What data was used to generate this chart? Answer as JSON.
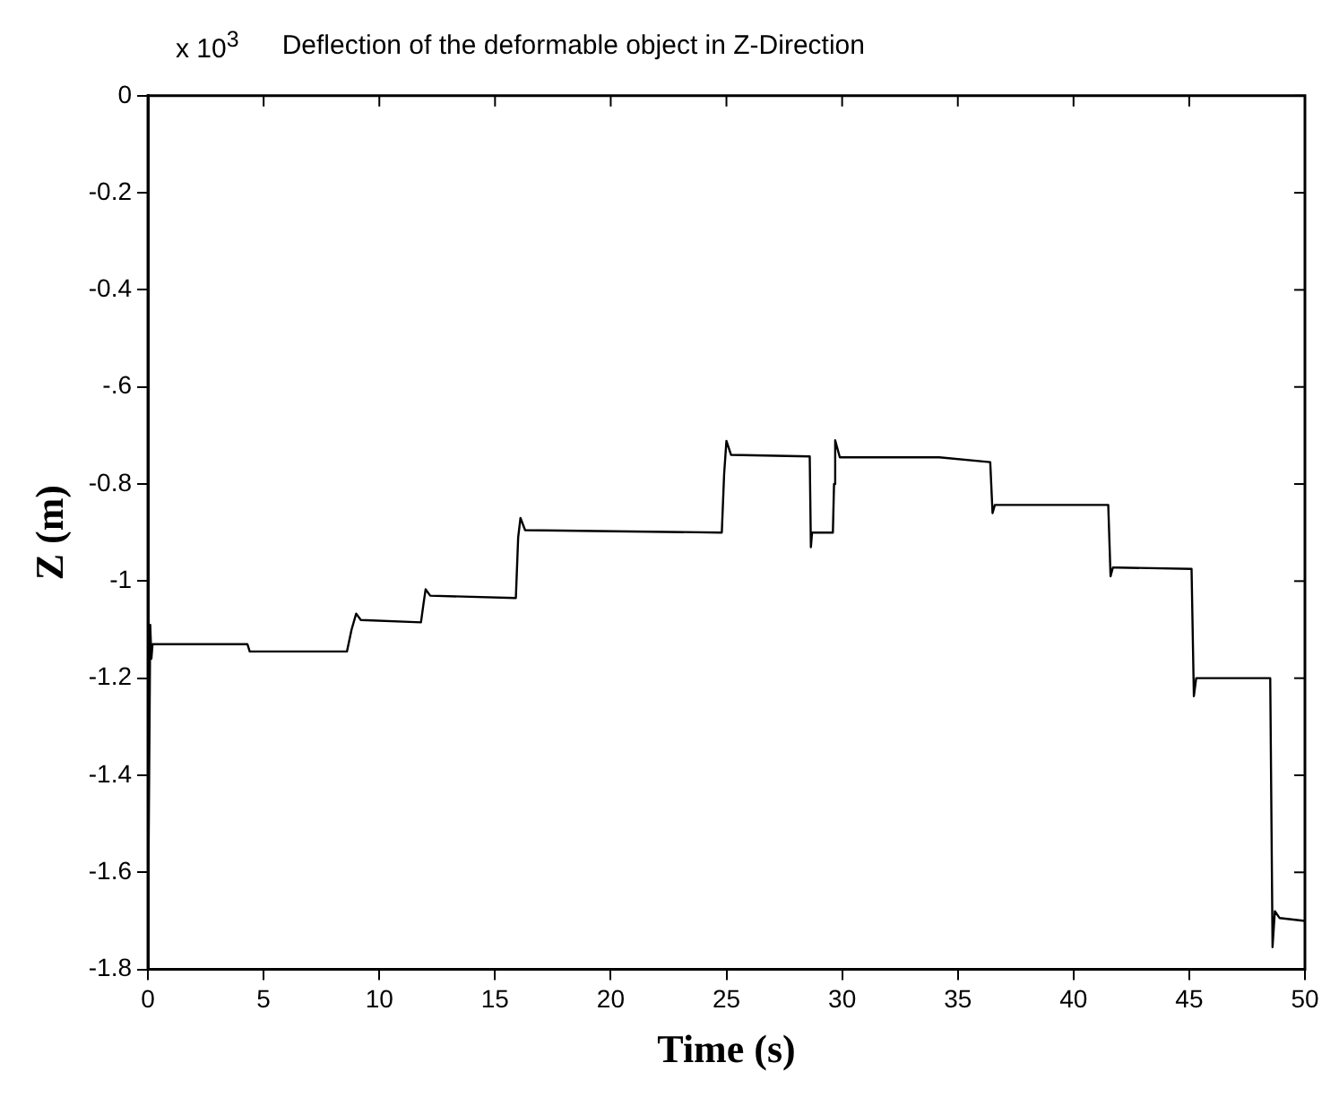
{
  "chart_data": {
    "type": "line",
    "title": "Deflection of the deformable object in Z-Direction",
    "xlabel": "Time (s)",
    "ylabel": "Z (m)",
    "annotations": [
      "x 10$^{3}$"
    ],
    "xlim": [
      0,
      50
    ],
    "xticks": [
      0,
      5,
      10,
      15,
      20,
      25,
      30,
      35,
      40,
      45,
      50
    ],
    "ylim": [
      -1.8,
      0
    ],
    "yticks": [
      0,
      -0.2,
      -0.4,
      {
        "value": -0.6,
        "label": "-.6"
      },
      -0.8,
      -1,
      -1.2,
      -1.4,
      -1.6,
      -1.8
    ],
    "grid": false,
    "legend": false,
    "marker": "none",
    "line_style": "solid",
    "series": [
      {
        "color": "#000000",
        "x": [
          0,
          0.1,
          0.15,
          0.2,
          0.3,
          4.3,
          4.4,
          8.6,
          8.8,
          9.0,
          9.2,
          11.8,
          11.9,
          12.0,
          12.2,
          15.9,
          16.0,
          16.1,
          16.3,
          24.8,
          24.9,
          25.0,
          25.2,
          28.6,
          28.65,
          28.7,
          28.9,
          29.6,
          29.65,
          29.7,
          29.9,
          34.2,
          36.4,
          36.5,
          36.6,
          36.8,
          41.5,
          41.6,
          41.7,
          41.9,
          45.1,
          45.2,
          45.3,
          45.5,
          48.5,
          48.6,
          48.7,
          48.9,
          50
        ],
        "values": [
          -1.75,
          -1.09,
          -1.16,
          -1.13,
          -1.13,
          -1.13,
          -1.145,
          -1.145,
          -1.1,
          -1.067,
          -1.08,
          -1.085,
          -1.05,
          -1.017,
          -1.03,
          -1.035,
          -0.91,
          -0.87,
          -0.895,
          -0.9,
          -0.78,
          -0.711,
          -0.74,
          -0.743,
          -0.93,
          -0.9,
          -0.9,
          -0.9,
          -0.8,
          -0.71,
          -0.745,
          -0.745,
          -0.755,
          -0.86,
          -0.843,
          -0.843,
          -0.843,
          -0.99,
          -0.972,
          -0.972,
          -0.975,
          -1.237,
          -1.2,
          -1.2,
          -1.2,
          -1.754,
          -1.68,
          -1.694,
          -1.7
        ]
      }
    ]
  }
}
